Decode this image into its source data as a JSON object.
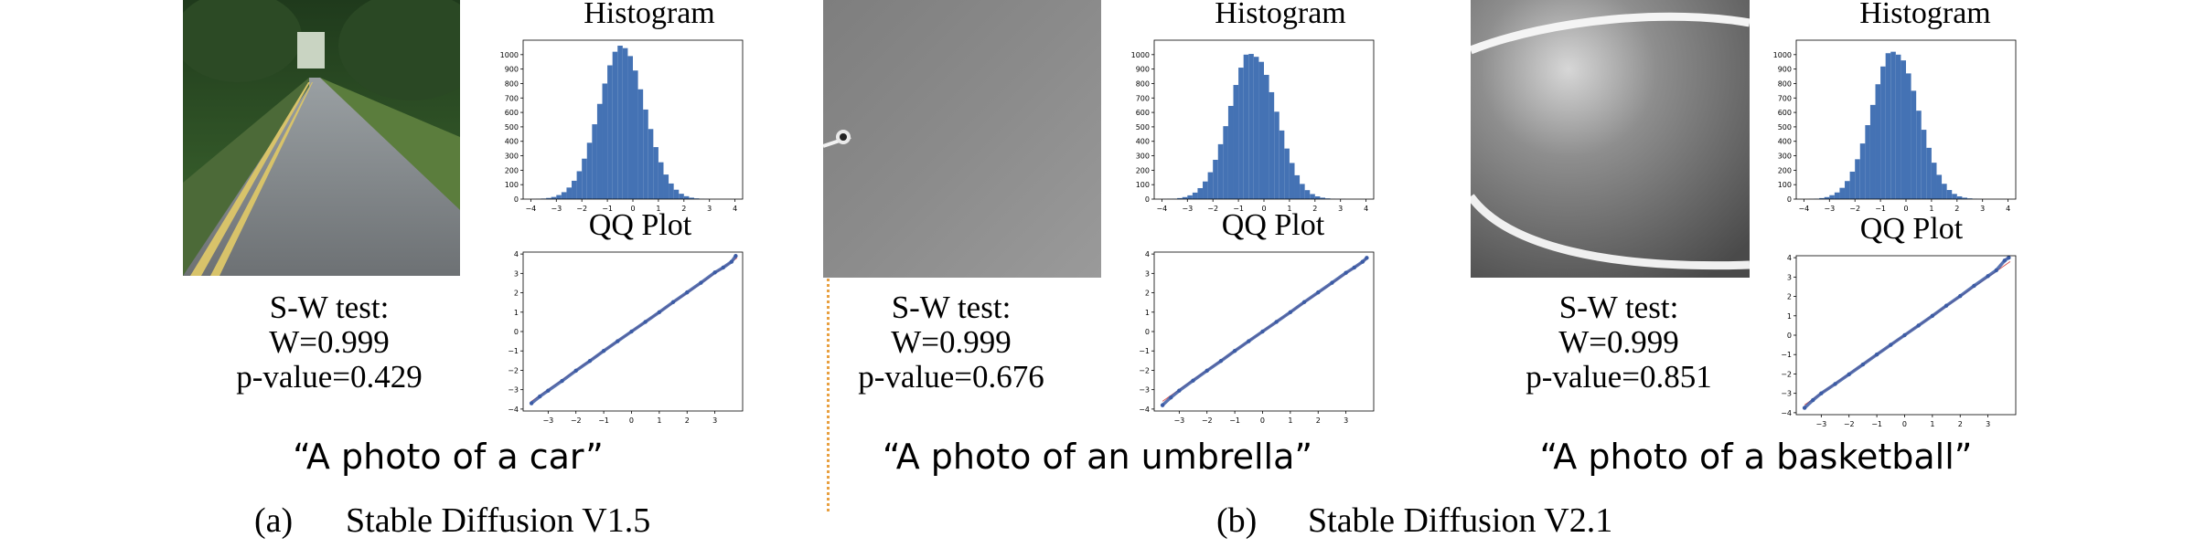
{
  "panels": [
    {
      "histogram_title": "Histogram",
      "qq_title": "QQ Plot",
      "sw_label": "S-W test:",
      "sw_w": "W=0.999",
      "sw_p": "p-value=0.429",
      "prompt": "“A photo of a car”"
    },
    {
      "histogram_title": "Histogram",
      "qq_title": "QQ Plot",
      "sw_label": "S-W test:",
      "sw_w": "W=0.999",
      "sw_p": "p-value=0.676",
      "prompt": "“A photo of an umbrella”"
    },
    {
      "histogram_title": "Histogram",
      "qq_title": "QQ Plot",
      "sw_label": "S-W test:",
      "sw_w": "W=0.999",
      "sw_p": "p-value=0.851",
      "prompt": "“A photo of a basketball”"
    }
  ],
  "captions": {
    "a_label": "(a)",
    "a_text": "Stable Diffusion V1.5",
    "b_label": "(b)",
    "b_text": "Stable Diffusion V2.1"
  },
  "colors": {
    "bar": "#4472b4",
    "qq_points": "#3b5ba5",
    "qq_line": "#d9534f",
    "divider": "#e8a040"
  },
  "chart_data": [
    {
      "type": "bar",
      "title": "Histogram",
      "x": [
        -3.9,
        -3.7,
        -3.5,
        -3.3,
        -3.1,
        -2.9,
        -2.7,
        -2.5,
        -2.3,
        -2.1,
        -1.9,
        -1.7,
        -1.5,
        -1.3,
        -1.1,
        -0.9,
        -0.7,
        -0.5,
        -0.3,
        -0.1,
        0.1,
        0.3,
        0.5,
        0.7,
        0.9,
        1.1,
        1.3,
        1.5,
        1.7,
        1.9,
        2.1,
        2.3,
        2.5,
        2.7,
        2.9,
        3.1,
        3.3,
        3.5,
        3.7,
        3.9
      ],
      "values": [
        1,
        2,
        4,
        8,
        15,
        28,
        48,
        80,
        127,
        193,
        280,
        390,
        518,
        659,
        800,
        926,
        1020,
        1062,
        1045,
        990,
        890,
        760,
        620,
        485,
        360,
        255,
        170,
        108,
        65,
        37,
        20,
        10,
        5,
        2,
        1,
        0,
        0,
        0,
        0,
        0
      ],
      "xlim": [
        -4.3,
        4.3
      ],
      "ylim": [
        0,
        1100
      ],
      "xticks": [
        -4,
        -3,
        -2,
        -1,
        0,
        1,
        2,
        3,
        4
      ],
      "yticks": [
        0,
        100,
        200,
        300,
        400,
        500,
        600,
        700,
        800,
        900,
        1000
      ]
    },
    {
      "type": "scatter",
      "title": "QQ Plot",
      "x": [
        -3.6,
        -3.3,
        -3.0,
        -2.5,
        -2.0,
        -1.5,
        -1.0,
        -0.5,
        0,
        0.5,
        1.0,
        1.5,
        2.0,
        2.5,
        3.0,
        3.3,
        3.6,
        3.75
      ],
      "values": [
        -3.7,
        -3.35,
        -3.05,
        -2.55,
        -2.02,
        -1.52,
        -1.0,
        -0.5,
        0,
        0.5,
        1.0,
        1.52,
        2.02,
        2.52,
        3.05,
        3.3,
        3.6,
        3.9
      ],
      "xlim": [
        -3.9,
        4.0
      ],
      "ylim": [
        -4.1,
        4.1
      ],
      "xticks": [
        -3,
        -2,
        -1,
        0,
        1,
        2,
        3
      ],
      "yticks": [
        -4,
        -3,
        -2,
        -1,
        0,
        1,
        2,
        3,
        4
      ]
    },
    {
      "type": "bar",
      "title": "Histogram",
      "x": [
        -3.9,
        -3.7,
        -3.5,
        -3.3,
        -3.1,
        -2.9,
        -2.7,
        -2.5,
        -2.3,
        -2.1,
        -1.9,
        -1.7,
        -1.5,
        -1.3,
        -1.1,
        -0.9,
        -0.7,
        -0.5,
        -0.3,
        -0.1,
        0.1,
        0.3,
        0.5,
        0.7,
        0.9,
        1.1,
        1.3,
        1.5,
        1.7,
        1.9,
        2.1,
        2.3,
        2.5,
        2.7,
        2.9,
        3.1,
        3.3,
        3.5,
        3.7,
        3.9
      ],
      "values": [
        1,
        2,
        3,
        7,
        14,
        26,
        45,
        76,
        122,
        186,
        272,
        380,
        505,
        645,
        790,
        910,
        1000,
        1005,
        985,
        950,
        860,
        740,
        605,
        475,
        350,
        250,
        165,
        105,
        62,
        35,
        19,
        10,
        5,
        2,
        1,
        1,
        0,
        0,
        0,
        0
      ],
      "xlim": [
        -4.3,
        4.3
      ],
      "ylim": [
        0,
        1100
      ],
      "xticks": [
        -4,
        -3,
        -2,
        -1,
        0,
        1,
        2,
        3,
        4
      ],
      "yticks": [
        0,
        100,
        200,
        300,
        400,
        500,
        600,
        700,
        800,
        900,
        1000
      ]
    },
    {
      "type": "scatter",
      "title": "QQ Plot",
      "x": [
        -3.6,
        -3.3,
        -3.0,
        -2.5,
        -2.0,
        -1.5,
        -1.0,
        -0.5,
        0,
        0.5,
        1.0,
        1.5,
        2.0,
        2.5,
        3.0,
        3.3,
        3.6,
        3.75
      ],
      "values": [
        -3.8,
        -3.4,
        -3.05,
        -2.53,
        -2.02,
        -1.52,
        -1.0,
        -0.5,
        0,
        0.5,
        1.0,
        1.52,
        2.02,
        2.52,
        3.03,
        3.3,
        3.6,
        3.8
      ],
      "xlim": [
        -3.9,
        4.0
      ],
      "ylim": [
        -4.1,
        4.1
      ],
      "xticks": [
        -3,
        -2,
        -1,
        0,
        1,
        2,
        3
      ],
      "yticks": [
        -4,
        -3,
        -2,
        -1,
        0,
        1,
        2,
        3,
        4
      ]
    },
    {
      "type": "bar",
      "title": "Histogram",
      "x": [
        -3.9,
        -3.7,
        -3.5,
        -3.3,
        -3.1,
        -2.9,
        -2.7,
        -2.5,
        -2.3,
        -2.1,
        -1.9,
        -1.7,
        -1.5,
        -1.3,
        -1.1,
        -0.9,
        -0.7,
        -0.5,
        -0.3,
        -0.1,
        0.1,
        0.3,
        0.5,
        0.7,
        0.9,
        1.1,
        1.3,
        1.5,
        1.7,
        1.9,
        2.1,
        2.3,
        2.5,
        2.7,
        2.9,
        3.1,
        3.3,
        3.5,
        3.7,
        3.9
      ],
      "values": [
        0,
        1,
        3,
        7,
        14,
        27,
        46,
        78,
        125,
        190,
        276,
        385,
        512,
        652,
        795,
        918,
        1010,
        1020,
        1000,
        960,
        870,
        750,
        612,
        480,
        355,
        252,
        168,
        106,
        63,
        36,
        19,
        10,
        5,
        2,
        1,
        0,
        0,
        0,
        0,
        0
      ],
      "xlim": [
        -4.3,
        4.3
      ],
      "ylim": [
        0,
        1100
      ],
      "xticks": [
        -4,
        -3,
        -2,
        -1,
        0,
        1,
        2,
        3,
        4
      ],
      "yticks": [
        0,
        100,
        200,
        300,
        400,
        500,
        600,
        700,
        800,
        900,
        1000
      ]
    },
    {
      "type": "scatter",
      "title": "QQ Plot",
      "x": [
        -3.6,
        -3.3,
        -3.0,
        -2.5,
        -2.0,
        -1.5,
        -1.0,
        -0.5,
        0,
        0.5,
        1.0,
        1.5,
        2.0,
        2.5,
        3.0,
        3.3,
        3.6,
        3.75
      ],
      "values": [
        -3.75,
        -3.35,
        -3.0,
        -2.52,
        -2.02,
        -1.51,
        -1.0,
        -0.5,
        0,
        0.5,
        1.0,
        1.52,
        2.02,
        2.55,
        3.05,
        3.35,
        3.85,
        4.0
      ],
      "xlim": [
        -3.9,
        4.0
      ],
      "ylim": [
        -4.1,
        4.1
      ],
      "xticks": [
        -3,
        -2,
        -1,
        0,
        1,
        2,
        3
      ],
      "yticks": [
        -4,
        -3,
        -2,
        -1,
        0,
        1,
        2,
        3,
        4
      ]
    }
  ]
}
